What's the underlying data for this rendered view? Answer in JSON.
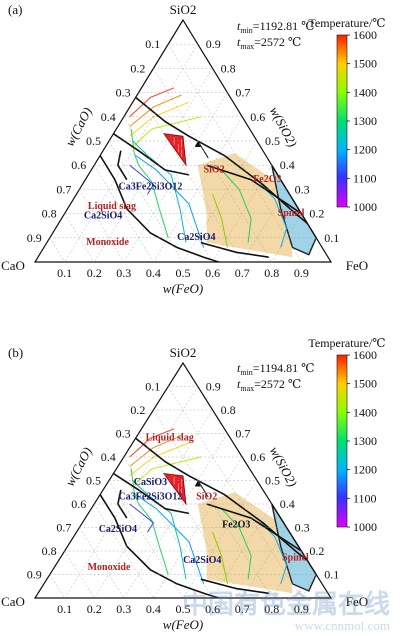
{
  "watermark": {
    "text_cn": "中国有色金属在线",
    "url": "www.cnnmol.com"
  },
  "chart_data": [
    {
      "type": "ternary-phase-diagram",
      "panel_label": "(a)",
      "apices": {
        "top": "SiO2",
        "left": "CaO",
        "right": "FeO"
      },
      "axis_labels": {
        "left": "w(CaO)",
        "right": "w(SiO2)",
        "bottom": "w(FeO)"
      },
      "ticks": [
        0.1,
        0.2,
        0.3,
        0.4,
        0.5,
        0.6,
        0.7,
        0.8,
        0.9
      ],
      "t_min_label": "t",
      "t_min_sub": "min",
      "t_min_value": "=1192.81 ℃",
      "t_max_label": "t",
      "t_max_sub": "max",
      "t_max_value": "=2572 ℃",
      "colorbar": {
        "title": "Temperature/℃",
        "min": 1000,
        "max": 1600,
        "ticks": [
          1000,
          1100,
          1200,
          1300,
          1400,
          1500,
          1600
        ]
      },
      "regions": [
        {
          "label": "Liquid slag",
          "color": "#b22222",
          "pos": [
            0.22,
            0.63,
            0.15
          ]
        },
        {
          "label": "Ca3Fe2Si3O12",
          "color": "#1a1a6e",
          "pos": [
            0.3,
            0.46,
            0.24
          ]
        },
        {
          "label": "SiO2",
          "color": "#b22222",
          "pos": [
            0.37,
            0.21,
            0.42
          ]
        },
        {
          "label": "Fe2O3",
          "color": "#b22222",
          "pos": [
            0.33,
            0.05,
            0.62
          ]
        },
        {
          "label": "Ca2SiO4",
          "color": "#1a1a6e",
          "pos": [
            0.18,
            0.68,
            0.14
          ]
        },
        {
          "label": "Spinel",
          "color": "#b22222",
          "pos": [
            0.19,
            0.04,
            0.77
          ]
        },
        {
          "label": "Monoxide",
          "color": "#b22222",
          "pos": [
            0.07,
            0.72,
            0.21
          ]
        },
        {
          "label": "Ca2SiO4",
          "color": "#1a1a6e",
          "pos": [
            0.09,
            0.41,
            0.5
          ]
        }
      ]
    },
    {
      "type": "ternary-phase-diagram",
      "panel_label": "(b)",
      "apices": {
        "top": "SiO2",
        "left": "CaO",
        "right": "FeO"
      },
      "axis_labels": {
        "left": "w(CaO)",
        "right": "w(SiO2)",
        "bottom": "w(FeO)"
      },
      "ticks": [
        0.1,
        0.2,
        0.3,
        0.4,
        0.5,
        0.6,
        0.7,
        0.8,
        0.9
      ],
      "t_min_label": "t",
      "t_min_sub": "min",
      "t_min_value": "=1194.81 ℃",
      "t_max_label": "t",
      "t_max_sub": "max",
      "t_max_value": "=2572 ℃",
      "colorbar": {
        "title": "Temperature/℃",
        "min": 1000,
        "max": 1600,
        "ticks": [
          1000,
          1100,
          1200,
          1300,
          1400,
          1500,
          1600
        ]
      },
      "regions": [
        {
          "label": "Liquid slag",
          "color": "#b22222",
          "pos": [
            0.67,
            0.21,
            0.12
          ]
        },
        {
          "label": "CaSiO3",
          "color": "#1a1a6e",
          "pos": [
            0.48,
            0.37,
            0.15
          ]
        },
        {
          "label": "Ca3Fe2Si3O12",
          "color": "#1a1a6e",
          "pos": [
            0.42,
            0.4,
            0.18
          ]
        },
        {
          "label": "SiO2",
          "color": "#b22222",
          "pos": [
            0.42,
            0.21,
            0.37
          ]
        },
        {
          "label": "Fe2O3",
          "color": "#111111",
          "pos": [
            0.3,
            0.17,
            0.53
          ]
        },
        {
          "label": "Ca2SiO4",
          "color": "#1a1a6e",
          "pos": [
            0.28,
            0.58,
            0.14
          ]
        },
        {
          "label": "Monoxide",
          "color": "#b22222",
          "pos": [
            0.12,
            0.69,
            0.19
          ]
        },
        {
          "label": "Ca2SiO4",
          "color": "#1a1a6e",
          "pos": [
            0.15,
            0.36,
            0.49
          ]
        },
        {
          "label": "Spinel",
          "color": "#b22222",
          "pos": [
            0.16,
            0.04,
            0.8
          ]
        }
      ]
    }
  ]
}
